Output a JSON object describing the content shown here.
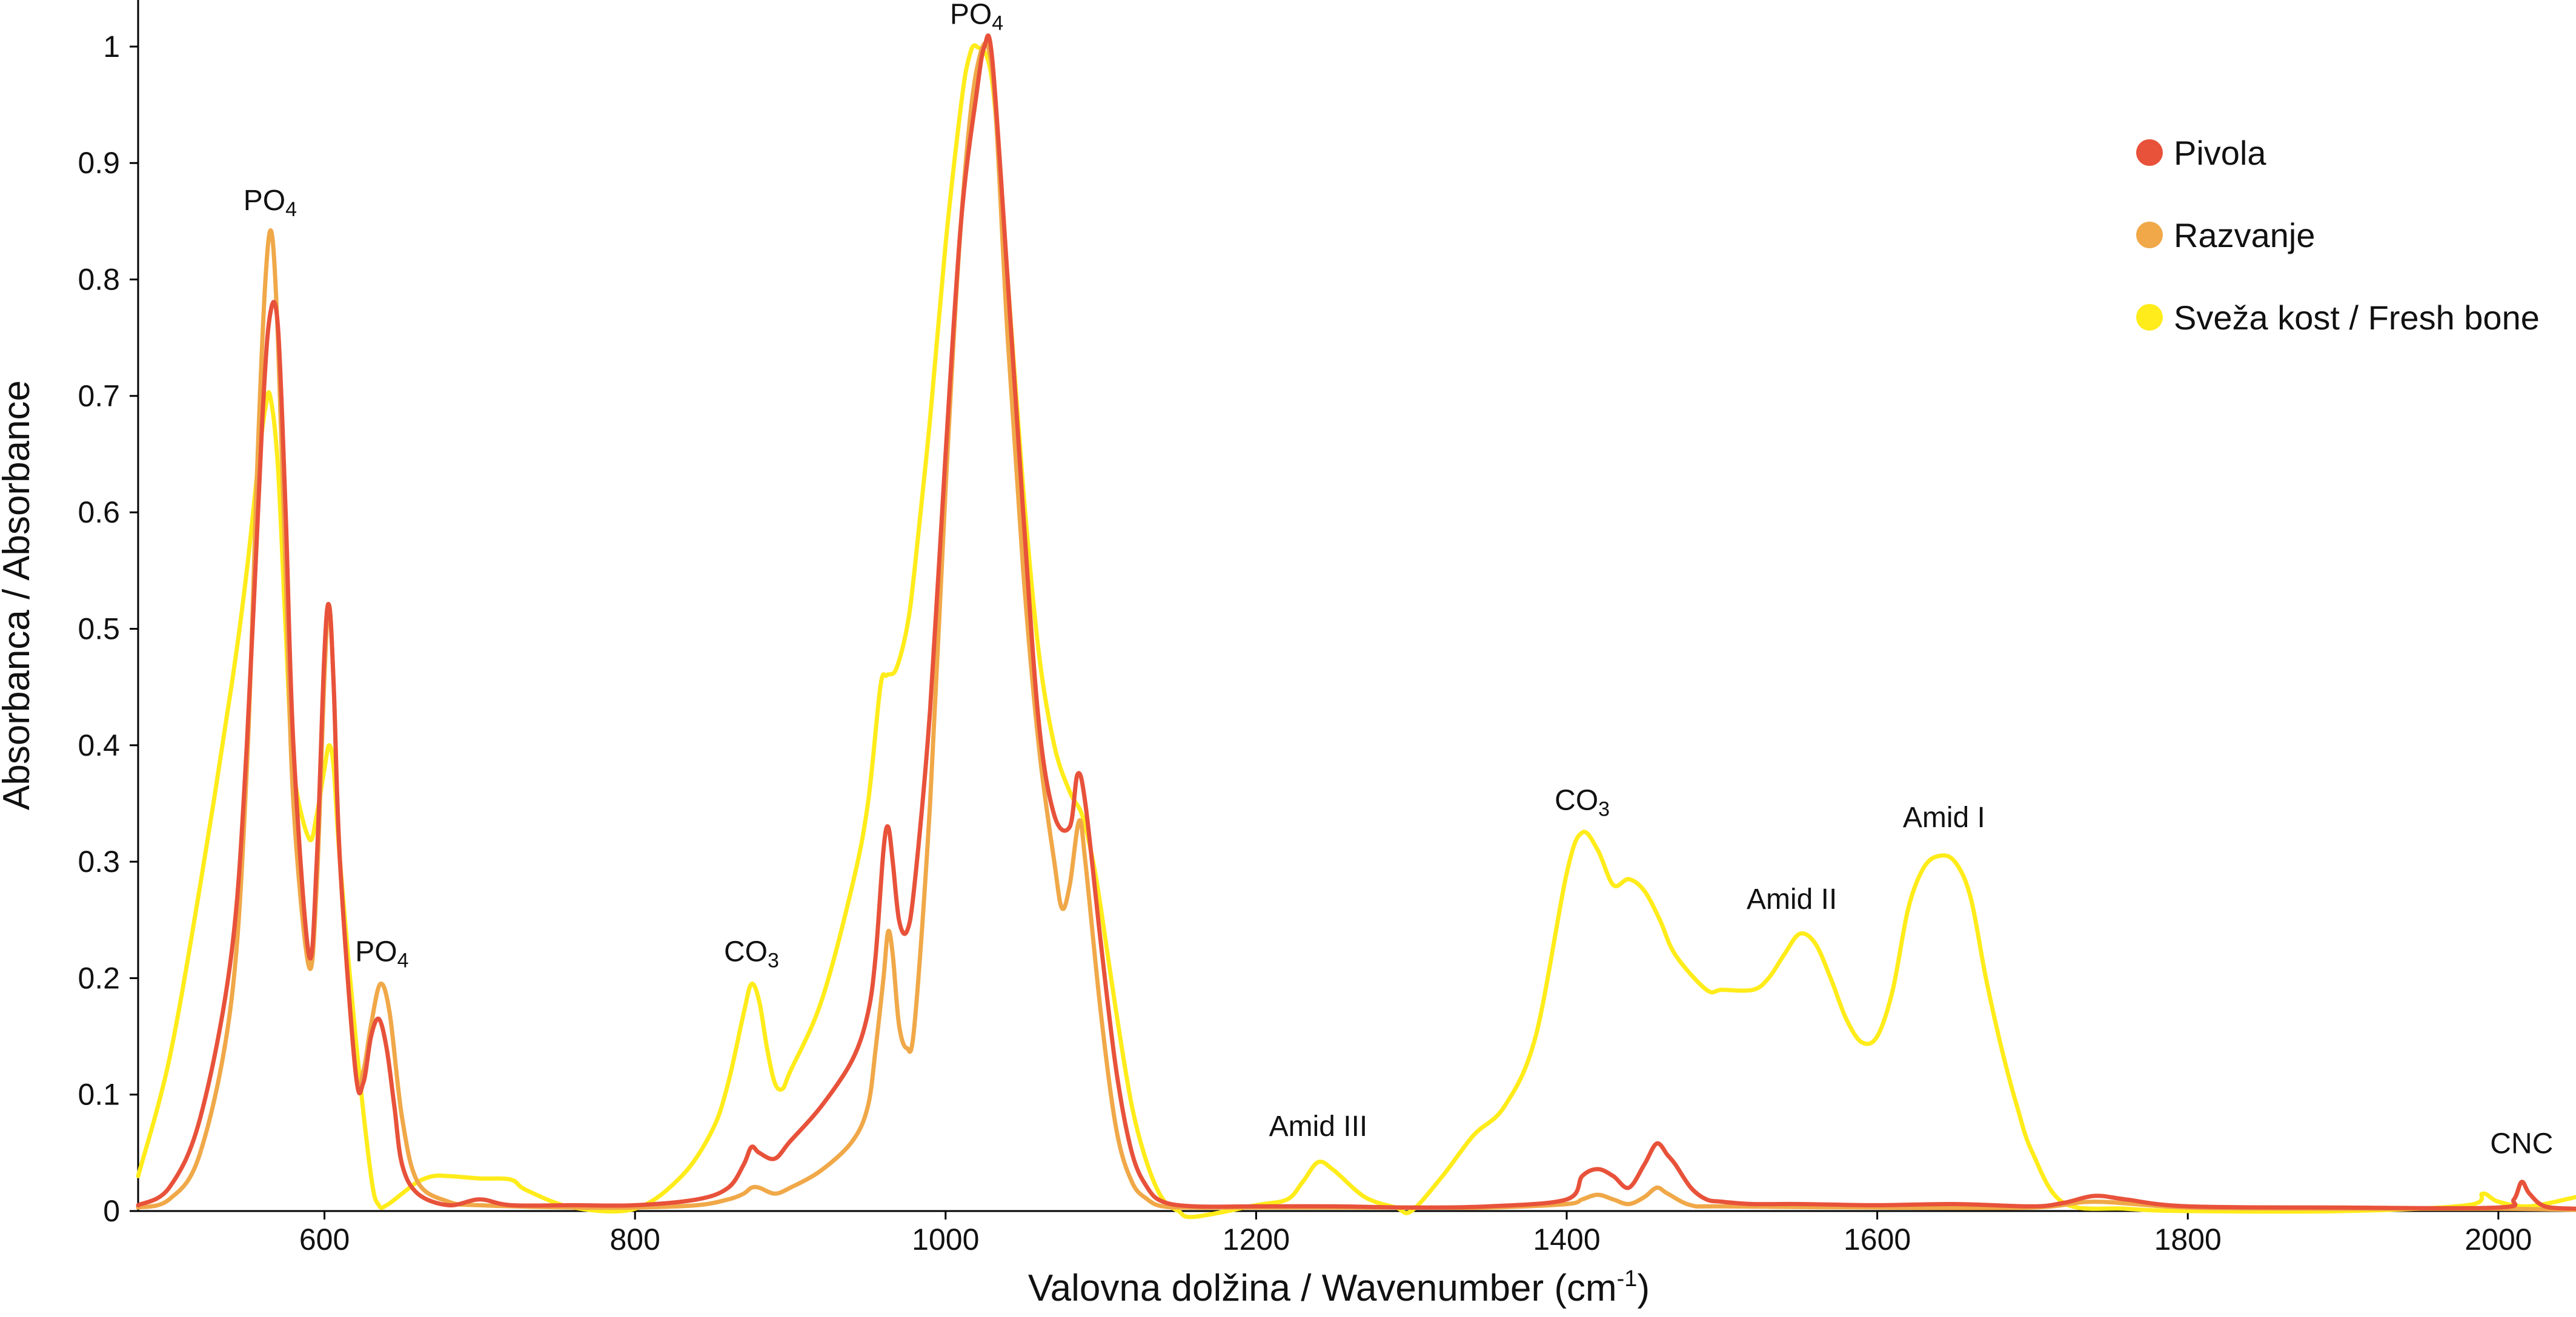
{
  "chart_data": {
    "type": "line",
    "title": "",
    "xlabel": "Valovna dolžina / Wavenumber (cm",
    "xlabel_sup": "-1",
    "xlabel_close": ")",
    "ylabel": "Absorbanca / Absorbance",
    "xlim": [
      480,
      2050
    ],
    "ylim": [
      0,
      1.04
    ],
    "grid": false,
    "legend_position": "top-right",
    "x_ticks": [
      {
        "value": 600,
        "label": "600"
      },
      {
        "value": 800,
        "label": "800"
      },
      {
        "value": 1000,
        "label": "1000"
      },
      {
        "value": 1200,
        "label": "1200"
      },
      {
        "value": 1400,
        "label": "1400"
      },
      {
        "value": 1600,
        "label": "1600"
      },
      {
        "value": 1800,
        "label": "1800"
      },
      {
        "value": 2000,
        "label": "2000"
      }
    ],
    "y_ticks": [
      {
        "value": 0,
        "label": "0"
      },
      {
        "value": 0.1,
        "label": "0.1"
      },
      {
        "value": 0.2,
        "label": "0.2"
      },
      {
        "value": 0.3,
        "label": "0.3"
      },
      {
        "value": 0.4,
        "label": "0.4"
      },
      {
        "value": 0.5,
        "label": "0.5"
      },
      {
        "value": 0.6,
        "label": "0.6"
      },
      {
        "value": 0.7,
        "label": "0.7"
      },
      {
        "value": 0.8,
        "label": "0.8"
      },
      {
        "value": 0.9,
        "label": "0.9"
      },
      {
        "value": 1,
        "label": "1"
      }
    ],
    "annotations": [
      {
        "main": "PO",
        "sub": "4",
        "x": 565,
        "y": 0.845
      },
      {
        "main": "PO",
        "sub": "4",
        "x": 637,
        "y": 0.2
      },
      {
        "main": "PO",
        "sub": "4",
        "x": 1020,
        "y": 1.005
      },
      {
        "main": "CO",
        "sub": "3",
        "x": 875,
        "y": 0.2
      },
      {
        "main": "CO",
        "sub": "3",
        "x": 1410,
        "y": 0.33
      },
      {
        "main": "Amid III",
        "sub": "",
        "x": 1240,
        "y": 0.05
      },
      {
        "main": "Amid II",
        "sub": "",
        "x": 1545,
        "y": 0.245
      },
      {
        "main": "Amid I",
        "sub": "",
        "x": 1643,
        "y": 0.315
      },
      {
        "main": "CNC",
        "sub": "",
        "x": 2015,
        "y": 0.035
      }
    ],
    "series": [
      {
        "name": "Pivola",
        "color": "#e8523a",
        "x": [
          480,
          500,
          520,
          540,
          550,
          560,
          565,
          570,
          575,
          580,
          590,
          595,
          600,
          603,
          606,
          610,
          620,
          625,
          630,
          635,
          640,
          645,
          650,
          660,
          680,
          700,
          720,
          760,
          800,
          840,
          860,
          870,
          875,
          880,
          890,
          900,
          920,
          940,
          950,
          955,
          960,
          963,
          966,
          970,
          975,
          980,
          990,
          1000,
          1010,
          1020,
          1025,
          1030,
          1040,
          1050,
          1060,
          1070,
          1080,
          1085,
          1090,
          1100,
          1110,
          1120,
          1130,
          1140,
          1160,
          1200,
          1250,
          1300,
          1350,
          1400,
          1410,
          1420,
          1430,
          1440,
          1450,
          1458,
          1465,
          1470,
          1480,
          1490,
          1500,
          1520,
          1550,
          1600,
          1650,
          1700,
          1720,
          1740,
          1760,
          1800,
          1900,
          2000,
          2010,
          2015,
          2020,
          2030,
          2050
        ],
        "y": [
          0.005,
          0.02,
          0.08,
          0.22,
          0.4,
          0.68,
          0.77,
          0.76,
          0.6,
          0.4,
          0.22,
          0.3,
          0.48,
          0.52,
          0.45,
          0.3,
          0.12,
          0.11,
          0.15,
          0.165,
          0.14,
          0.09,
          0.04,
          0.015,
          0.005,
          0.01,
          0.005,
          0.005,
          0.005,
          0.01,
          0.02,
          0.04,
          0.055,
          0.05,
          0.045,
          0.06,
          0.09,
          0.13,
          0.17,
          0.22,
          0.31,
          0.33,
          0.3,
          0.25,
          0.24,
          0.28,
          0.43,
          0.65,
          0.85,
          0.96,
          1.0,
          0.99,
          0.8,
          0.6,
          0.42,
          0.34,
          0.33,
          0.375,
          0.35,
          0.23,
          0.12,
          0.05,
          0.02,
          0.008,
          0.004,
          0.004,
          0.004,
          0.003,
          0.004,
          0.01,
          0.03,
          0.036,
          0.03,
          0.02,
          0.04,
          0.058,
          0.048,
          0.04,
          0.02,
          0.01,
          0.008,
          0.006,
          0.006,
          0.005,
          0.006,
          0.004,
          0.007,
          0.013,
          0.01,
          0.004,
          0.003,
          0.003,
          0.01,
          0.025,
          0.015,
          0.004,
          0.002
        ]
      },
      {
        "name": "Razvanje",
        "color": "#f0a848",
        "x": [
          480,
          500,
          520,
          540,
          550,
          557,
          562,
          566,
          570,
          575,
          580,
          590,
          595,
          600,
          603,
          606,
          610,
          620,
          625,
          630,
          636,
          642,
          650,
          660,
          680,
          700,
          760,
          800,
          840,
          860,
          870,
          875,
          880,
          890,
          900,
          920,
          940,
          950,
          955,
          960,
          963,
          966,
          970,
          975,
          980,
          990,
          1000,
          1010,
          1020,
          1030,
          1040,
          1050,
          1060,
          1070,
          1075,
          1080,
          1086,
          1090,
          1100,
          1110,
          1120,
          1130,
          1140,
          1160,
          1200,
          1250,
          1300,
          1350,
          1400,
          1410,
          1420,
          1430,
          1440,
          1450,
          1458,
          1465,
          1480,
          1500,
          1600,
          1700,
          1740,
          1800,
          1900,
          2000,
          2050
        ],
        "y": [
          0.003,
          0.01,
          0.05,
          0.18,
          0.38,
          0.65,
          0.8,
          0.84,
          0.75,
          0.55,
          0.35,
          0.21,
          0.28,
          0.46,
          0.52,
          0.45,
          0.3,
          0.12,
          0.12,
          0.16,
          0.195,
          0.17,
          0.08,
          0.025,
          0.008,
          0.005,
          0.003,
          0.003,
          0.005,
          0.01,
          0.015,
          0.02,
          0.02,
          0.015,
          0.02,
          0.035,
          0.06,
          0.09,
          0.14,
          0.2,
          0.24,
          0.22,
          0.16,
          0.14,
          0.16,
          0.35,
          0.62,
          0.85,
          0.98,
          0.98,
          0.75,
          0.55,
          0.4,
          0.3,
          0.26,
          0.28,
          0.335,
          0.3,
          0.17,
          0.07,
          0.025,
          0.01,
          0.004,
          0.003,
          0.003,
          0.003,
          0.003,
          0.003,
          0.006,
          0.01,
          0.014,
          0.01,
          0.006,
          0.012,
          0.02,
          0.015,
          0.005,
          0.004,
          0.003,
          0.003,
          0.008,
          0.003,
          0.002,
          0.002,
          0.001
        ]
      },
      {
        "name": "Sveža kost / Fresh bone",
        "color": "#ffec1a",
        "x": [
          480,
          500,
          520,
          540,
          550,
          558,
          562,
          565,
          570,
          575,
          580,
          590,
          595,
          600,
          603,
          606,
          610,
          620,
          630,
          635,
          640,
          650,
          660,
          670,
          680,
          700,
          720,
          730,
          760,
          800,
          830,
          850,
          860,
          870,
          875,
          880,
          885,
          890,
          895,
          900,
          920,
          940,
          950,
          958,
          962,
          968,
          975,
          980,
          990,
          1000,
          1010,
          1015,
          1020,
          1030,
          1040,
          1050,
          1060,
          1070,
          1080,
          1088,
          1095,
          1100,
          1110,
          1120,
          1130,
          1140,
          1150,
          1160,
          1200,
          1220,
          1230,
          1240,
          1250,
          1270,
          1290,
          1300,
          1320,
          1340,
          1360,
          1380,
          1400,
          1410,
          1420,
          1430,
          1440,
          1450,
          1460,
          1470,
          1490,
          1500,
          1520,
          1530,
          1540,
          1550,
          1560,
          1570,
          1580,
          1590,
          1600,
          1610,
          1620,
          1630,
          1640,
          1650,
          1660,
          1670,
          1680,
          1690,
          1700,
          1720,
          1760,
          1800,
          1900,
          1980,
          1990,
          2000,
          2020,
          2050
        ],
        "y": [
          0.03,
          0.13,
          0.28,
          0.45,
          0.55,
          0.65,
          0.69,
          0.7,
          0.64,
          0.5,
          0.38,
          0.32,
          0.34,
          0.38,
          0.4,
          0.38,
          0.3,
          0.15,
          0.03,
          0.005,
          0.005,
          0.015,
          0.025,
          0.03,
          0.03,
          0.028,
          0.027,
          0.018,
          0.003,
          0.002,
          0.03,
          0.07,
          0.11,
          0.17,
          0.195,
          0.18,
          0.14,
          0.11,
          0.105,
          0.12,
          0.18,
          0.28,
          0.35,
          0.45,
          0.46,
          0.465,
          0.5,
          0.55,
          0.68,
          0.83,
          0.95,
          0.99,
          1.0,
          0.97,
          0.8,
          0.62,
          0.48,
          0.4,
          0.36,
          0.34,
          0.3,
          0.26,
          0.17,
          0.09,
          0.04,
          0.01,
          0.0,
          -0.005,
          0.005,
          0.01,
          0.025,
          0.042,
          0.035,
          0.012,
          0.003,
          0.0,
          0.03,
          0.065,
          0.09,
          0.15,
          0.29,
          0.325,
          0.31,
          0.28,
          0.285,
          0.275,
          0.25,
          0.22,
          0.19,
          0.19,
          0.19,
          0.2,
          0.22,
          0.238,
          0.23,
          0.2,
          0.165,
          0.145,
          0.15,
          0.19,
          0.26,
          0.295,
          0.305,
          0.3,
          0.27,
          0.2,
          0.14,
          0.09,
          0.05,
          0.007,
          0.002,
          0.0,
          0.0,
          0.005,
          0.015,
          0.008,
          0.004,
          0.012
        ]
      }
    ]
  }
}
